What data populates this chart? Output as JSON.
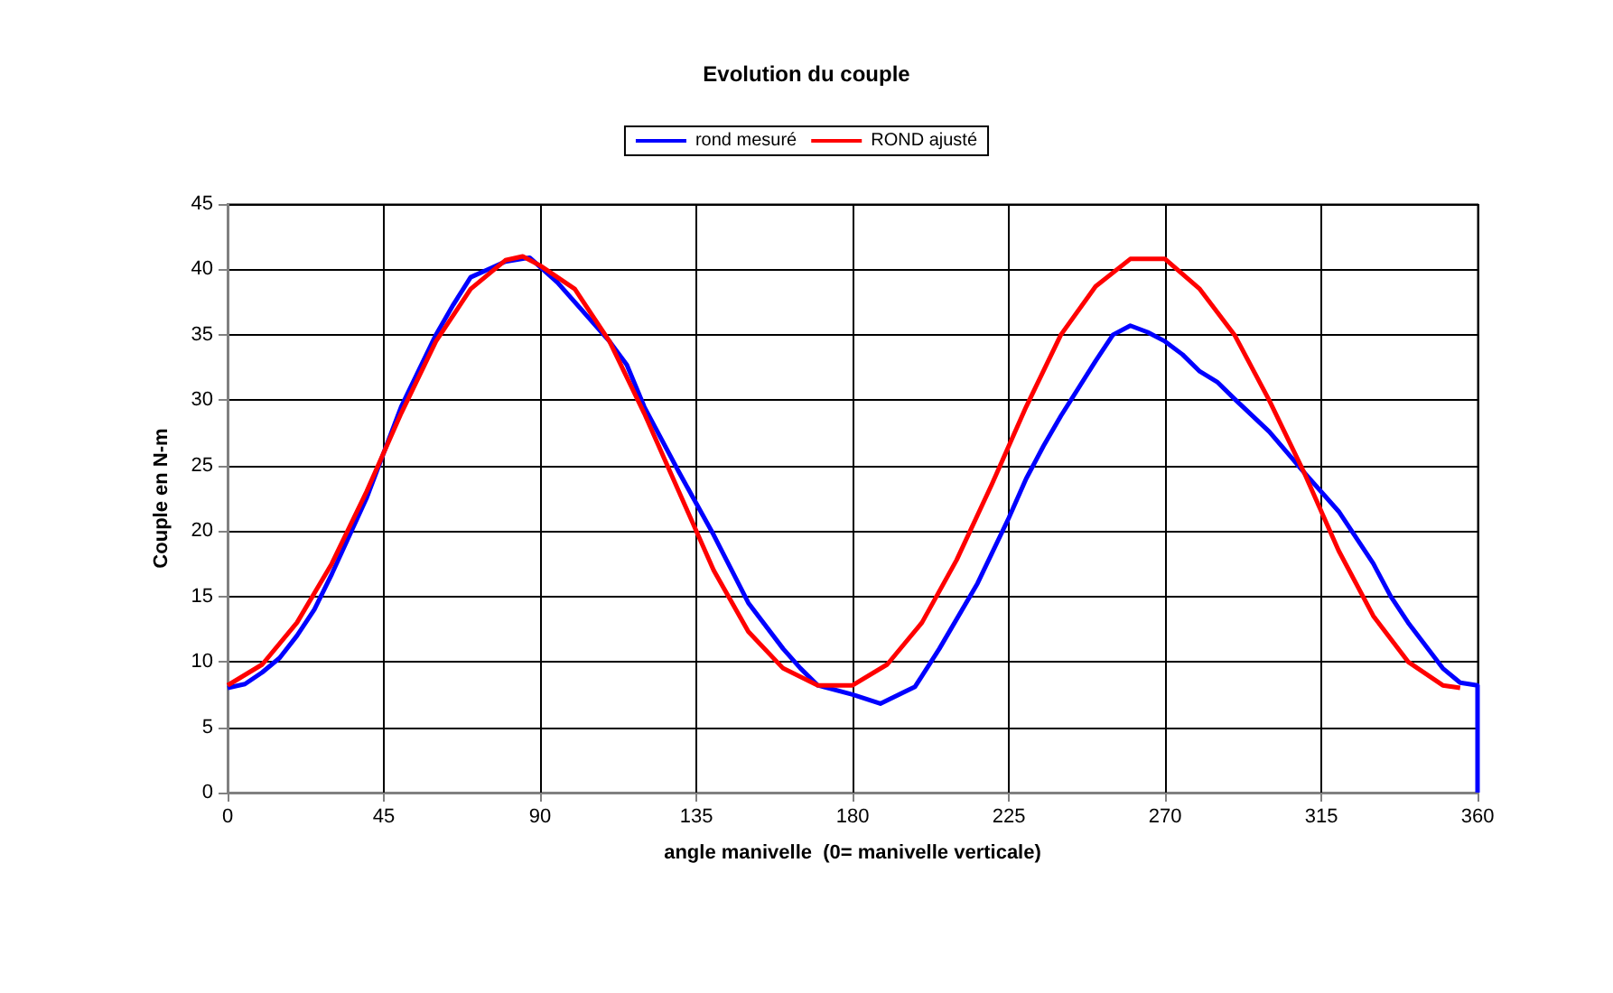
{
  "chart_data": {
    "type": "line",
    "title": "Evolution du couple",
    "xlabel": "angle manivelle  (0= manivelle verticale)",
    "ylabel": "Couple en N-m",
    "xlim": [
      0,
      360
    ],
    "xticks": [
      0,
      45,
      90,
      135,
      180,
      225,
      270,
      315,
      360
    ],
    "ylim": [
      0,
      45
    ],
    "yticks": [
      0,
      5,
      10,
      15,
      20,
      25,
      30,
      35,
      40,
      45
    ],
    "grid": true,
    "legend": "top",
    "marker": "none",
    "line_style": "solid",
    "series": [
      {
        "name": "rond mesuré",
        "color": "#0000ff",
        "x": [
          0,
          5,
          10,
          15,
          20,
          25,
          30,
          40,
          50,
          60,
          65,
          70,
          75,
          80,
          87,
          90,
          95,
          100,
          110,
          115,
          120,
          130,
          140,
          150,
          160,
          165,
          170,
          180,
          188,
          198,
          205,
          216,
          225,
          230,
          235,
          240,
          250,
          255,
          260,
          265,
          270,
          275,
          280,
          285,
          290,
          300,
          310,
          320,
          330,
          335,
          340,
          350,
          355,
          360,
          360
        ],
        "values": [
          8,
          8.3,
          9.2,
          10.3,
          12,
          14,
          16.7,
          22.5,
          29.5,
          35,
          37.3,
          39.4,
          40,
          40.6,
          40.9,
          40.2,
          39,
          37.5,
          34.5,
          32.7,
          29.5,
          24.5,
          19.7,
          14.5,
          11,
          9.5,
          8.2,
          7.5,
          6.8,
          8.1,
          11,
          16,
          21,
          24,
          26.5,
          28.8,
          33,
          35,
          35.7,
          35.2,
          34.5,
          33.5,
          32.2,
          31.4,
          30.1,
          27.6,
          24.5,
          21.5,
          17.5,
          15,
          13,
          9.5,
          8.4,
          8.2,
          0
        ]
      },
      {
        "name": "ROND ajusté",
        "color": "#ff0000",
        "x": [
          0,
          10,
          20,
          30,
          40,
          50,
          60,
          70,
          80,
          85,
          90,
          100,
          110,
          120,
          130,
          140,
          150,
          160,
          170,
          180,
          190,
          200,
          210,
          220,
          230,
          240,
          250,
          260,
          270,
          280,
          290,
          300,
          310,
          320,
          330,
          340,
          350,
          355
        ],
        "values": [
          8.2,
          9.8,
          13,
          17.5,
          23,
          29,
          34.5,
          38.5,
          40.7,
          41,
          40.3,
          38.5,
          34.5,
          29,
          23,
          17,
          12.3,
          9.5,
          8.2,
          8.2,
          9.8,
          13,
          17.8,
          23.5,
          29.5,
          35,
          38.7,
          40.8,
          40.8,
          38.5,
          35,
          30,
          24.5,
          18.5,
          13.5,
          10,
          8.2,
          8
        ]
      }
    ]
  }
}
